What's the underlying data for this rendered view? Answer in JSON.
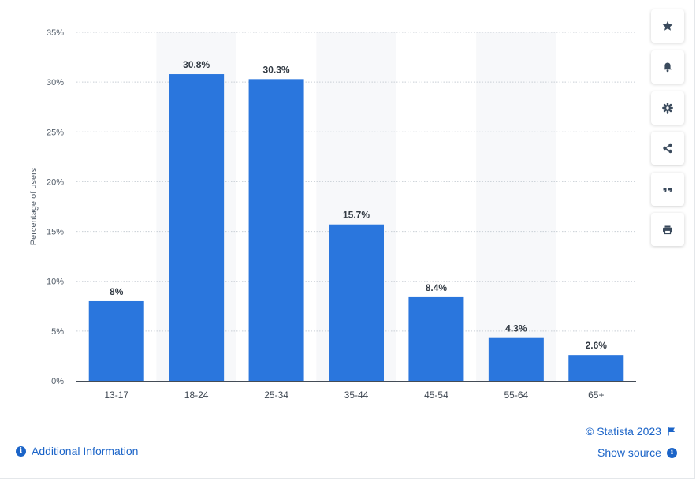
{
  "chart_data": {
    "type": "bar",
    "categories": [
      "13-17",
      "18-24",
      "25-34",
      "35-44",
      "45-54",
      "55-64",
      "65+"
    ],
    "values": [
      8,
      30.8,
      30.3,
      15.7,
      8.4,
      4.3,
      2.6
    ],
    "value_labels": [
      "8%",
      "30.8%",
      "30.3%",
      "15.7%",
      "8.4%",
      "4.3%",
      "2.6%"
    ],
    "ylabel": "Percentage of users",
    "xlabel": "",
    "ylim": [
      0,
      35
    ],
    "yticks": [
      0,
      5,
      10,
      15,
      20,
      25,
      30,
      35
    ],
    "ytick_labels": [
      "0%",
      "5%",
      "10%",
      "15%",
      "20%",
      "25%",
      "30%",
      "35%"
    ],
    "grid": true,
    "bar_color": "#2a76dd"
  },
  "toolbar": {
    "icons": [
      "star-icon",
      "bell-icon",
      "gear-icon",
      "share-icon",
      "quote-icon",
      "print-icon"
    ]
  },
  "footer": {
    "copyright": "© Statista 2023",
    "show_source": "Show source",
    "additional_info": "Additional Information"
  },
  "colors": {
    "accent": "#1b64c8",
    "bar": "#2a76dd",
    "icon": "#3a4a5c"
  }
}
